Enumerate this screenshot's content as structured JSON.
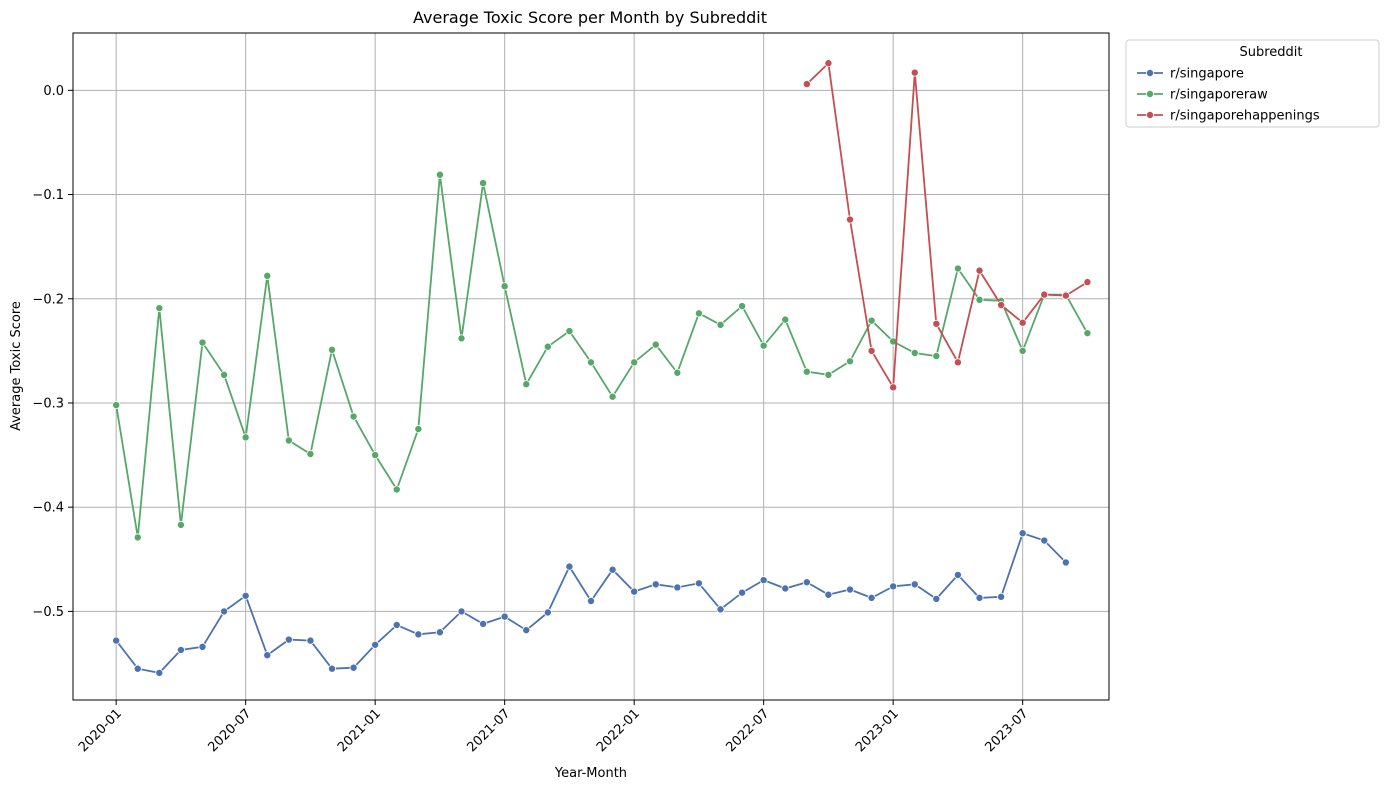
{
  "chart_data": {
    "type": "line",
    "title": "Average Toxic Score per Month by Subreddit",
    "xlabel": "Year-Month",
    "ylabel": "Average Toxic Score",
    "grid": true,
    "legend": {
      "title": "Subreddit",
      "placement": "outside-top-right"
    },
    "x_ticks": [
      "2020-01",
      "2020-07",
      "2021-01",
      "2021-07",
      "2022-01",
      "2022-07",
      "2023-01",
      "2023-07"
    ],
    "y_ticks": [
      0.0,
      -0.1,
      -0.2,
      -0.3,
      -0.4,
      -0.5
    ],
    "y_tick_labels": [
      "0.0",
      "−0.1",
      "−0.2",
      "−0.3",
      "−0.4",
      "−0.5"
    ],
    "xlim": [
      "2019-11",
      "2023-11"
    ],
    "ylim": [
      -0.585,
      0.055
    ],
    "series": [
      {
        "name": "r/singapore",
        "color": "#4c72b0",
        "x": [
          "2020-01",
          "2020-02",
          "2020-03",
          "2020-04",
          "2020-05",
          "2020-06",
          "2020-07",
          "2020-08",
          "2020-09",
          "2020-10",
          "2020-11",
          "2020-12",
          "2021-01",
          "2021-02",
          "2021-03",
          "2021-04",
          "2021-05",
          "2021-06",
          "2021-07",
          "2021-08",
          "2021-09",
          "2021-10",
          "2021-11",
          "2021-12",
          "2022-01",
          "2022-02",
          "2022-03",
          "2022-04",
          "2022-05",
          "2022-06",
          "2022-07",
          "2022-08",
          "2022-09",
          "2022-10",
          "2022-11",
          "2022-12",
          "2023-01",
          "2023-02",
          "2023-03",
          "2023-04",
          "2023-05",
          "2023-06",
          "2023-07",
          "2023-08",
          "2023-09"
        ],
        "values": [
          -0.528,
          -0.555,
          -0.559,
          -0.537,
          -0.534,
          -0.5,
          -0.485,
          -0.542,
          -0.527,
          -0.528,
          -0.555,
          -0.554,
          -0.532,
          -0.513,
          -0.522,
          -0.52,
          -0.5,
          -0.512,
          -0.505,
          -0.518,
          -0.501,
          -0.457,
          -0.49,
          -0.46,
          -0.481,
          -0.474,
          -0.477,
          -0.473,
          -0.498,
          -0.482,
          -0.47,
          -0.478,
          -0.472,
          -0.484,
          -0.479,
          -0.487,
          -0.476,
          -0.474,
          -0.488,
          -0.465,
          -0.487,
          -0.486,
          -0.425,
          -0.432,
          -0.453
        ]
      },
      {
        "name": "r/singaporeraw",
        "color": "#55a868",
        "x": [
          "2020-01",
          "2020-02",
          "2020-03",
          "2020-04",
          "2020-05",
          "2020-06",
          "2020-07",
          "2020-08",
          "2020-09",
          "2020-10",
          "2020-11",
          "2020-12",
          "2021-01",
          "2021-02",
          "2021-03",
          "2021-04",
          "2021-05",
          "2021-06",
          "2021-07",
          "2021-08",
          "2021-09",
          "2021-10",
          "2021-11",
          "2021-12",
          "2022-01",
          "2022-02",
          "2022-03",
          "2022-04",
          "2022-05",
          "2022-06",
          "2022-07",
          "2022-08",
          "2022-09",
          "2022-10",
          "2022-11",
          "2022-12",
          "2023-01",
          "2023-02",
          "2023-03",
          "2023-04",
          "2023-05",
          "2023-06",
          "2023-07",
          "2023-08",
          "2023-09",
          "2023-10"
        ],
        "values": [
          -0.302,
          -0.429,
          -0.209,
          -0.417,
          -0.242,
          -0.273,
          -0.333,
          -0.178,
          -0.336,
          -0.349,
          -0.249,
          -0.313,
          -0.35,
          -0.383,
          -0.325,
          -0.081,
          -0.238,
          -0.089,
          -0.188,
          -0.282,
          -0.246,
          -0.231,
          -0.261,
          -0.294,
          -0.261,
          -0.244,
          -0.271,
          -0.214,
          -0.225,
          -0.207,
          -0.245,
          -0.22,
          -0.27,
          -0.273,
          -0.26,
          -0.221,
          -0.241,
          -0.252,
          -0.255,
          -0.171,
          -0.201,
          -0.202,
          -0.25,
          -0.196,
          -0.196,
          -0.233
        ]
      },
      {
        "name": "r/singaporehappenings",
        "color": "#c44e52",
        "x": [
          "2022-09",
          "2022-10",
          "2022-11",
          "2022-12",
          "2023-01",
          "2023-02",
          "2023-03",
          "2023-04",
          "2023-05",
          "2023-06",
          "2023-07",
          "2023-08",
          "2023-09",
          "2023-10"
        ],
        "values": [
          0.006,
          0.026,
          -0.124,
          -0.25,
          -0.285,
          0.017,
          -0.224,
          -0.261,
          -0.173,
          -0.206,
          -0.223,
          -0.196,
          -0.197,
          -0.184
        ]
      }
    ]
  }
}
